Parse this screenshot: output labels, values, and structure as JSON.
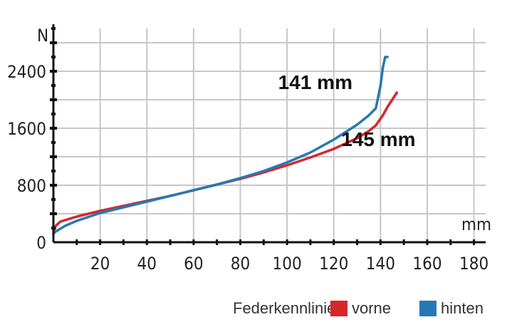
{
  "chart_data": {
    "type": "line",
    "title": "",
    "xlabel": "mm",
    "ylabel": "N",
    "xlim": [
      0,
      185
    ],
    "ylim": [
      0,
      3000
    ],
    "xticks": [
      20,
      40,
      60,
      80,
      100,
      120,
      140,
      160,
      180
    ],
    "xtick_labels": [
      "20",
      "40",
      "60",
      "80",
      "100",
      "120",
      "140",
      "160",
      "180"
    ],
    "yticks": [
      0,
      800,
      1600,
      2400
    ],
    "ytick_labels": [
      "0",
      "800",
      "1600",
      "2400"
    ],
    "grid": true,
    "legend_title": "Federkennlinien:",
    "series": [
      {
        "name": "vorne",
        "color": "#d8262b",
        "x": [
          0,
          1,
          3,
          10,
          20,
          30,
          40,
          50,
          60,
          70,
          80,
          90,
          100,
          110,
          120,
          130,
          135,
          138,
          141,
          143,
          145,
          147
        ],
        "y": [
          120,
          230,
          290,
          360,
          440,
          510,
          580,
          650,
          730,
          810,
          890,
          980,
          1080,
          1190,
          1310,
          1460,
          1560,
          1640,
          1780,
          1900,
          2000,
          2100
        ]
      },
      {
        "name": "hinten",
        "color": "#2479b5",
        "x": [
          0,
          1,
          5,
          10,
          20,
          30,
          40,
          50,
          60,
          70,
          80,
          90,
          100,
          110,
          120,
          130,
          135,
          138,
          140,
          141,
          142,
          143
        ],
        "y": [
          120,
          150,
          230,
          300,
          410,
          490,
          570,
          650,
          730,
          810,
          900,
          1000,
          1120,
          1260,
          1440,
          1650,
          1780,
          1880,
          2200,
          2450,
          2600,
          2600
        ]
      }
    ],
    "annotations": [
      {
        "text": "141 mm",
        "x": 128,
        "y": 2150
      },
      {
        "text": "145 mm",
        "x": 155,
        "y": 1350
      }
    ]
  }
}
